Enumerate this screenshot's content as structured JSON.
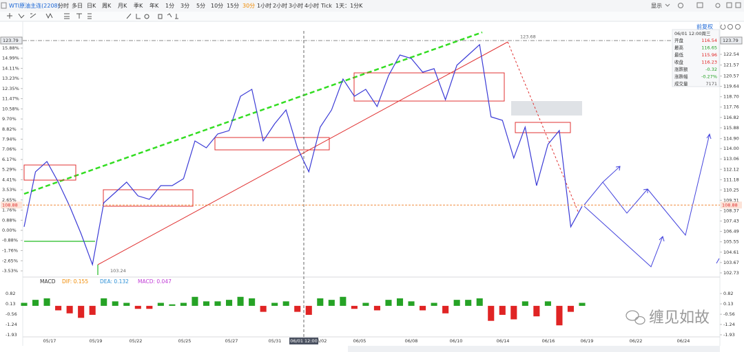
{
  "toolbar": {
    "symbol": "WTI原油主连(2208)",
    "periods": [
      "分时",
      "多日",
      "日K",
      "周K",
      "月K",
      "季K",
      "年K",
      "1分",
      "3分",
      "5分",
      "10分",
      "15分",
      "30分",
      "1小时",
      "2小时",
      "3小时",
      "4小时",
      "Tick",
      "1天：1分K"
    ],
    "active_period": 12,
    "display": "显示"
  },
  "adjust": "前复权",
  "info_panel": {
    "time": "06/01 12:00周三",
    "rows": [
      [
        "开盘",
        "116.54"
      ],
      [
        "最高",
        "116.65"
      ],
      [
        "最低",
        "115.96"
      ],
      [
        "收盘",
        "116.23"
      ],
      [
        "涨跌额",
        "-0.32"
      ],
      [
        "涨跌幅",
        "-0.27%"
      ],
      [
        "成交量",
        "7171"
      ]
    ]
  },
  "watermark": "缠见如故",
  "chart_data": [
    {
      "type": "line",
      "color": "#3a3ad6",
      "values": [
        106.91,
        111.89,
        112.83,
        110.96,
        108.78,
        106.28,
        103.48,
        109.09,
        110.02,
        110.96,
        109.71,
        109.4,
        110.64,
        110.64,
        111.27,
        114.69,
        114.07,
        115.32,
        115.63,
        118.74,
        119.37,
        114.69,
        116.25,
        117.5,
        114.07,
        111.89,
        115.94,
        117.5,
        120.3,
        118.74,
        119.37,
        117.81,
        120.61,
        122.48,
        122.17,
        120.92,
        121.24,
        118.43,
        121.55,
        122.48,
        123.42,
        116.87,
        116.56,
        113.14,
        115.94,
        110.64,
        114.38,
        115.63,
        106.91,
        108.78
      ],
      "x_labels": [
        "05/17",
        "05/19",
        "05/22",
        "05/25",
        "05/27",
        "05/31",
        "06/02",
        "06/05",
        "06/08",
        "06/10",
        "06/14",
        "06/16",
        "06/19",
        "06/22",
        "06/24"
      ],
      "crosshair": {
        "x_label": "06/01 12:00",
        "price": 123.79
      },
      "last_price": 108.88,
      "high_label": 123.68,
      "low_label": 103.24,
      "ylim": [
        102.54,
        124.66
      ],
      "yticks": [
        {
          "value": 122.54,
          "label": "122.54"
        },
        121.57,
        120.57,
        119.64,
        {
          "value": 118.7,
          "label": "118.70"
        },
        117.76,
        116.82,
        115.88,
        {
          "value": 114.9,
          "label": "114.90"
        },
        {
          "value": 114,
          "label": "114.00"
        },
        113.06,
        112.12,
        111.18,
        110.25,
        109.31,
        108.37,
        107.43,
        106.49,
        105.55,
        104.61,
        103.67,
        102.73
      ],
      "y2lim": [
        -3.89,
        17.37
      ],
      "y2ticks": [
        {
          "value": 15.88,
          "label": "15.88%"
        },
        {
          "value": 14.99,
          "label": "14.99%"
        },
        {
          "value": 14.11,
          "label": "14.11%"
        },
        {
          "value": 13.23,
          "label": "13.23%"
        },
        {
          "value": 12.35,
          "label": "12.35%"
        },
        {
          "value": 11.47,
          "label": "11.47%"
        },
        {
          "value": 10.58,
          "label": "10.58%"
        },
        {
          "value": 9.7,
          "label": "9.70%"
        },
        {
          "value": 8.82,
          "label": "8.82%"
        },
        {
          "value": 7.94,
          "label": "7.94%"
        },
        {
          "value": 7.06,
          "label": "7.06%"
        },
        {
          "value": 6.17,
          "label": "6.17%"
        },
        {
          "value": 5.29,
          "label": "5.29%"
        },
        {
          "value": 4.41,
          "label": "4.41%"
        },
        {
          "value": 3.53,
          "label": "3.53%"
        },
        {
          "value": 2.65,
          "label": "2.65%"
        },
        {
          "value": 1.76,
          "label": "1.76%"
        },
        {
          "value": 0.88,
          "label": "0.88%"
        },
        {
          "value": 0,
          "label": "0.00%"
        },
        {
          "value": -0.88,
          "label": "-0.88%"
        },
        {
          "value": -1.76,
          "label": "-1.76%"
        },
        {
          "value": -2.65,
          "label": "-2.65%"
        },
        {
          "value": -3.53,
          "label": "-3.53%"
        }
      ]
    },
    {
      "type": "bar",
      "title": "MACD",
      "dif": "DIF: 0.155",
      "dea": "DEA: 0.132",
      "macd": "MACD: 0.047",
      "colors": {
        "up": "#26a326",
        "down": "#e02424"
      },
      "values": [
        0.2,
        0.4,
        0.5,
        -0.3,
        -0.5,
        -0.8,
        -0.6,
        0.5,
        0.3,
        0.2,
        -0.2,
        -0.2,
        0.2,
        0.1,
        0.2,
        0.6,
        0.3,
        0.3,
        0.4,
        0.6,
        0.5,
        -0.4,
        0.2,
        0.3,
        -0.4,
        -0.6,
        0.5,
        0.4,
        0.6,
        -0.2,
        0.2,
        -0.3,
        0.4,
        0.5,
        0.3,
        -0.3,
        0.2,
        -0.5,
        0.4,
        0.4,
        0.5,
        -1.0,
        -0.6,
        -0.9,
        0.3,
        -0.7,
        0.3,
        -1.3,
        -0.4,
        0.2
      ],
      "ylim": [
        -2.16,
        1.14
      ],
      "yticks": [
        0.82,
        0.13,
        -0.56,
        -1.24,
        -1.93
      ]
    }
  ]
}
